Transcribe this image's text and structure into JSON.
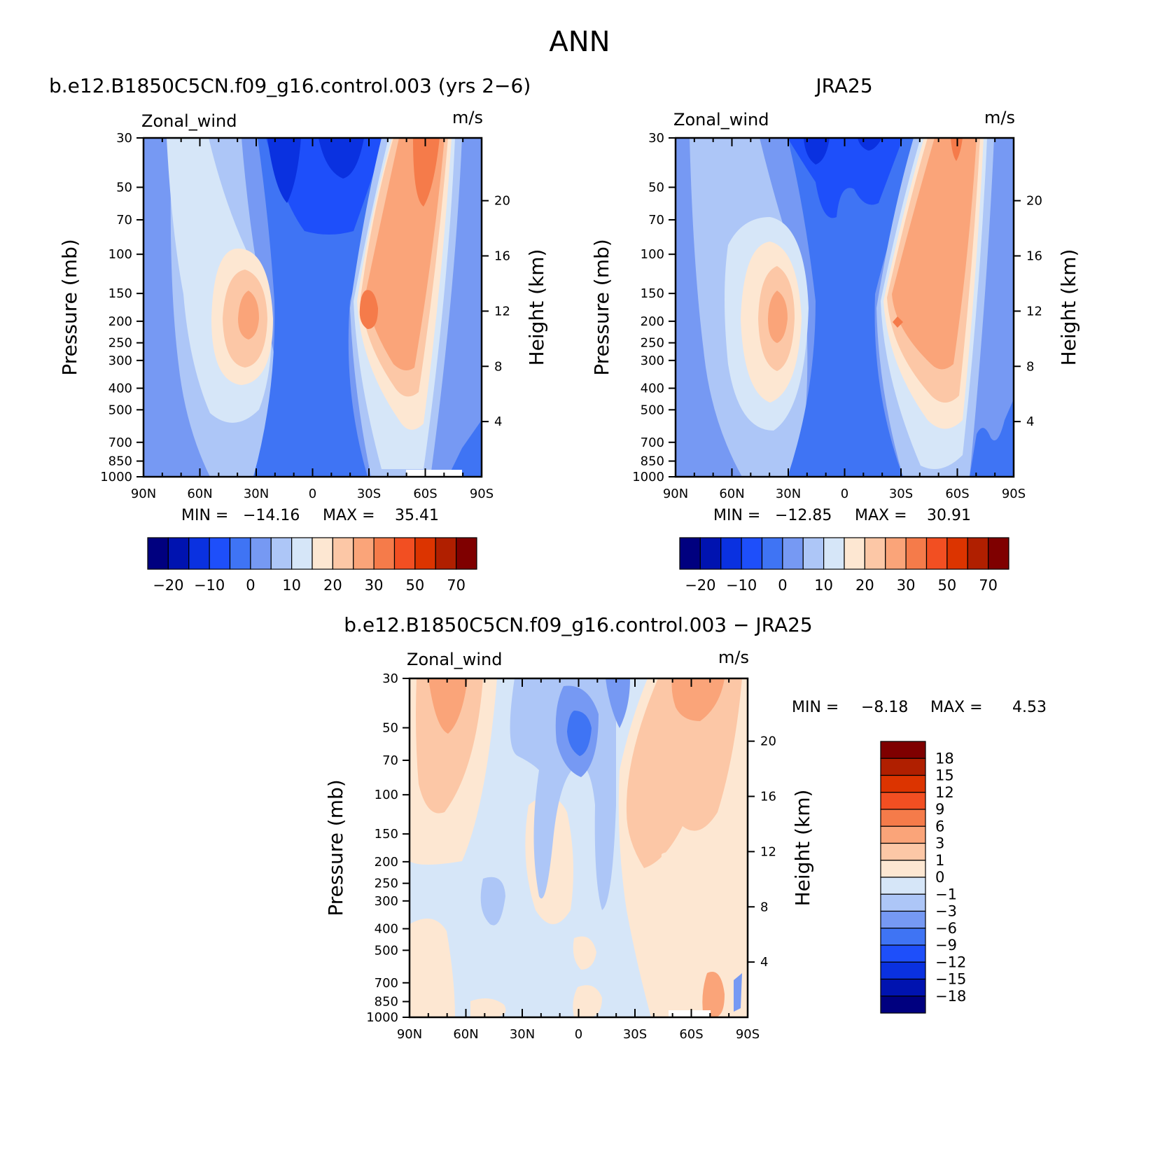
{
  "figure": {
    "title": "ANN",
    "panels": [
      {
        "subtitle": "b.e12.B1850C5CN.f09_g16.control.003 (yrs 2−6)",
        "left_label": "Zonal_wind",
        "right_label": "m/s",
        "stats": {
          "min_label": "MIN =",
          "min": "−14.16",
          "max_label": "MAX =",
          "max": "35.41"
        }
      },
      {
        "subtitle": "JRA25",
        "left_label": "Zonal_wind",
        "right_label": "m/s",
        "stats": {
          "min_label": "MIN =",
          "min": "−12.85",
          "max_label": "MAX =",
          "max": "30.91"
        }
      },
      {
        "subtitle": "b.e12.B1850C5CN.f09_g16.control.003 − JRA25",
        "left_label": "Zonal_wind",
        "right_label": "m/s",
        "stats": {
          "min_label": "MIN =",
          "min": "−8.18",
          "max_label": "MAX =",
          "max": "4.53"
        }
      }
    ],
    "axes": {
      "ylabel": "Pressure (mb)",
      "ylabel_right": "Height (km)",
      "pressure_ticks": [
        "30",
        "50",
        "70",
        "100",
        "150",
        "200",
        "250",
        "300",
        "400",
        "500",
        "700",
        "850",
        "1000"
      ],
      "height_ticks": [
        "20",
        "16",
        "12",
        "8",
        "4"
      ],
      "lat_ticks": [
        "90N",
        "60N",
        "30N",
        "0",
        "30S",
        "60S",
        "90S"
      ]
    },
    "colorbar_top": {
      "labels": [
        "−20",
        "−10",
        "0",
        "10",
        "20",
        "30",
        "50",
        "70"
      ],
      "colors": [
        "#00007f",
        "#0013b0",
        "#0a31e0",
        "#1e4ffa",
        "#3f74f4",
        "#7699f3",
        "#adc6f7",
        "#d6e6f8",
        "#fde7d2",
        "#fcc7a6",
        "#faa479",
        "#f57b4a",
        "#f24f22",
        "#dc3400",
        "#b01f00",
        "#7f0000"
      ]
    },
    "colorbar_diff": {
      "labels": [
        "18",
        "15",
        "12",
        "9",
        "6",
        "3",
        "1",
        "0",
        "−1",
        "−3",
        "−6",
        "−9",
        "−12",
        "−15",
        "−18"
      ],
      "colors": [
        "#7f0000",
        "#b01f00",
        "#dc3400",
        "#f24f22",
        "#f57b4a",
        "#faa479",
        "#fcc7a6",
        "#fde7d2",
        "#d6e6f8",
        "#adc6f7",
        "#7699f3",
        "#3f74f4",
        "#1e4ffa",
        "#0a31e0",
        "#0013b0",
        "#00007f"
      ]
    }
  },
  "chart_data": [
    {
      "type": "heatmap",
      "title": "b.e12.B1850C5CN.f09_g16.control.003 (yrs 2−6)",
      "variable": "Zonal_wind",
      "units": "m/s",
      "x": "latitude",
      "xlim": [
        90,
        -90
      ],
      "ylabel": "Pressure (mb)",
      "ylim": [
        1000,
        30
      ],
      "y_scale": "log",
      "min": -14.16,
      "max": 35.41,
      "features": [
        {
          "lat": 30,
          "p": 200,
          "value": 20
        },
        {
          "lat": -40,
          "p": 200,
          "value": 35
        },
        {
          "lat": -60,
          "p": 40,
          "value": 30
        },
        {
          "lat": 10,
          "p": 40,
          "value": -10
        }
      ]
    },
    {
      "type": "heatmap",
      "title": "JRA25",
      "variable": "Zonal_wind",
      "units": "m/s",
      "x": "latitude",
      "xlim": [
        90,
        -90
      ],
      "ylabel": "Pressure (mb)",
      "ylim": [
        1000,
        30
      ],
      "y_scale": "log",
      "min": -12.85,
      "max": 30.91,
      "features": [
        {
          "lat": 30,
          "p": 200,
          "value": 20
        },
        {
          "lat": -40,
          "p": 200,
          "value": 30
        },
        {
          "lat": -60,
          "p": 30,
          "value": 30
        },
        {
          "lat": 10,
          "p": 40,
          "value": -10
        }
      ]
    },
    {
      "type": "heatmap",
      "title": "b.e12.B1850C5CN.f09_g16.control.003 − JRA25",
      "variable": "Zonal_wind",
      "units": "m/s",
      "x": "latitude",
      "xlim": [
        90,
        -90
      ],
      "ylabel": "Pressure (mb)",
      "ylim": [
        1000,
        30
      ],
      "y_scale": "log",
      "min": -8.18,
      "max": 4.53,
      "features": [
        {
          "lat": 65,
          "p": 40,
          "value": 3
        },
        {
          "lat": -60,
          "p": 40,
          "value": 3
        },
        {
          "lat": 0,
          "p": 50,
          "value": -8
        },
        {
          "lat": -30,
          "p": 200,
          "value": 1
        }
      ]
    }
  ]
}
